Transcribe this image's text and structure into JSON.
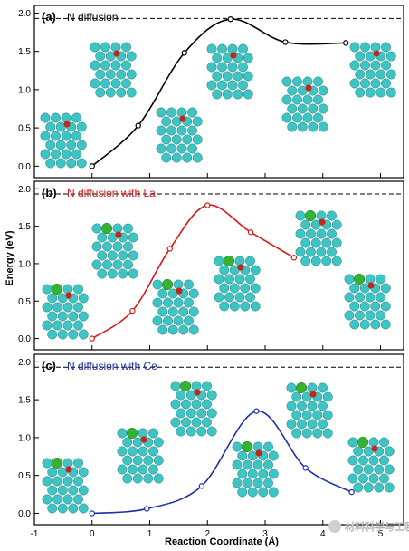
{
  "figure": {
    "xlabel": "Reaction Coordinate (Å)",
    "ylabel": "Energy (eV)",
    "x_ticks": [
      "-1",
      "0",
      "1",
      "2",
      "3",
      "4",
      "5"
    ],
    "y_ticks": [
      "0.0",
      "0.5",
      "1.0",
      "1.5",
      "2.0"
    ],
    "watermark": "材料科学与工程"
  },
  "chart_data": [
    {
      "type": "line",
      "panel": "(a)",
      "title": "N diffusion",
      "color": "#000000",
      "xlim": [
        -1,
        5.4
      ],
      "ylim": [
        -0.15,
        2.1
      ],
      "reference_line_y": 1.93,
      "points": [
        {
          "x": 0.0,
          "y": 0.0
        },
        {
          "x": 0.8,
          "y": 0.53
        },
        {
          "x": 1.6,
          "y": 1.48
        },
        {
          "x": 2.4,
          "y": 1.92
        },
        {
          "x": 3.35,
          "y": 1.62
        },
        {
          "x": 4.4,
          "y": 1.61
        }
      ]
    },
    {
      "type": "line",
      "panel": "(b)",
      "title": "N diffusion with La",
      "color": "#d7191c",
      "xlim": [
        -1,
        5.4
      ],
      "ylim": [
        -0.15,
        2.1
      ],
      "reference_line_y": 1.93,
      "points": [
        {
          "x": 0.0,
          "y": 0.0
        },
        {
          "x": 0.7,
          "y": 0.37
        },
        {
          "x": 1.35,
          "y": 1.2
        },
        {
          "x": 2.0,
          "y": 1.78
        },
        {
          "x": 2.75,
          "y": 1.42
        },
        {
          "x": 3.5,
          "y": 1.08
        }
      ]
    },
    {
      "type": "line",
      "panel": "(c)",
      "title": "N diffusion with Ce",
      "color": "#1f2fa8",
      "xlim": [
        -1,
        5.4
      ],
      "ylim": [
        -0.15,
        2.1
      ],
      "reference_line_y": 1.93,
      "points": [
        {
          "x": 0.0,
          "y": 0.0
        },
        {
          "x": 0.95,
          "y": 0.06
        },
        {
          "x": 1.9,
          "y": 0.36
        },
        {
          "x": 2.85,
          "y": 1.35
        },
        {
          "x": 3.7,
          "y": 0.6
        },
        {
          "x": 4.5,
          "y": 0.28
        }
      ]
    }
  ],
  "colors": {
    "host_atom": "#3fc4c4",
    "nitrogen_atom": "#c0281e",
    "dopant_atom": "#33b233",
    "reference_line": "#000000"
  },
  "structure_icons": [
    {
      "panel": 0,
      "dopant": false
    },
    {
      "panel": 1,
      "dopant": true
    },
    {
      "panel": 2,
      "dopant": true
    }
  ]
}
